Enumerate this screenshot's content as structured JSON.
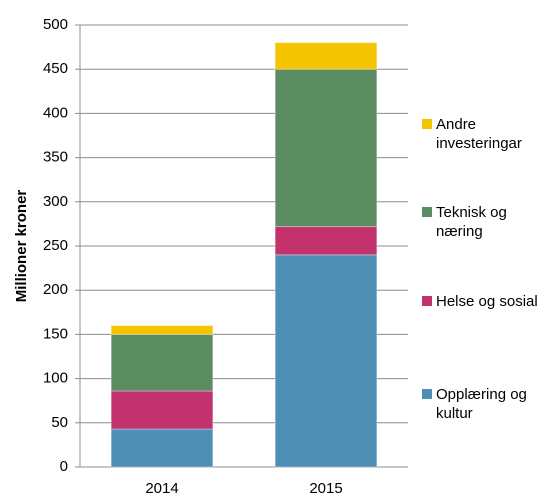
{
  "chart_data": {
    "type": "stacked_bar",
    "y_label": "Millioner kroner",
    "categories": [
      "2014",
      "2015"
    ],
    "series": [
      {
        "name": "Opplæring og kultur",
        "color": "#4f8fb5",
        "values": [
          43,
          240
        ]
      },
      {
        "name": "Helse og sosial",
        "color": "#c2336e",
        "values": [
          43,
          32
        ]
      },
      {
        "name": "Teknisk og næring",
        "color": "#5c8c62",
        "values": [
          64,
          178
        ]
      },
      {
        "name": "Andre investeringar",
        "color": "#f5c400",
        "values": [
          10,
          30
        ]
      }
    ],
    "ylim": [
      0,
      500
    ],
    "yticks": [
      0,
      50,
      100,
      150,
      200,
      250,
      300,
      350,
      400,
      450,
      500
    ],
    "grid": true,
    "legend": "right"
  }
}
